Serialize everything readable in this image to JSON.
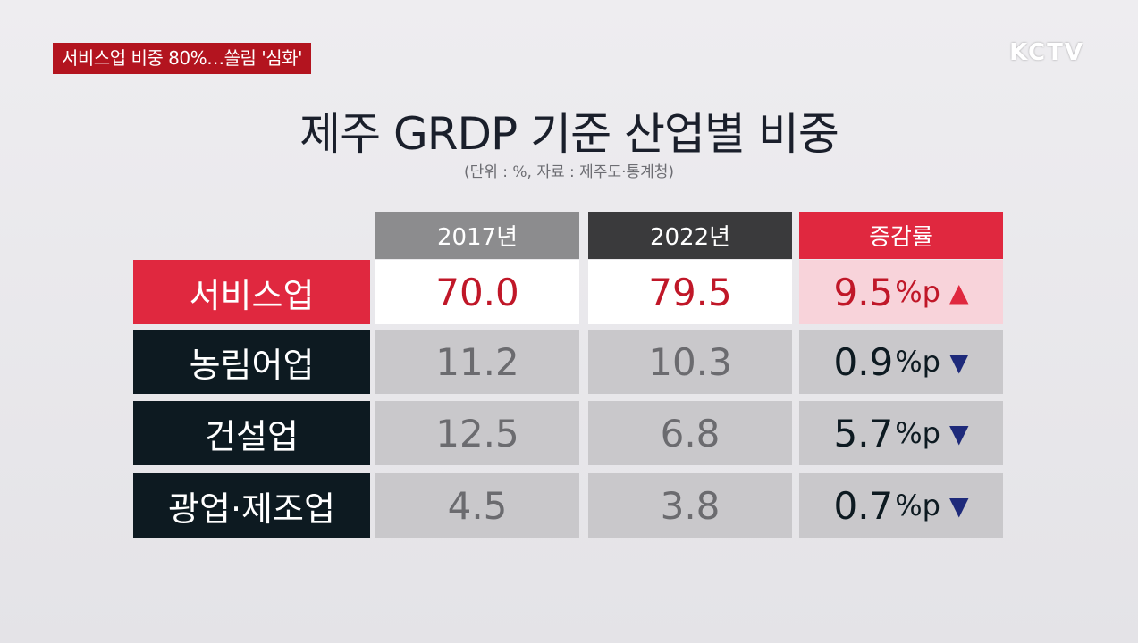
{
  "headline": "서비스업 비중 80%…쏠림 '심화'",
  "logo": "KCTV",
  "title": "제주 GRDP 기준 산업별 비중",
  "subtitle": "(단위 : %, 자료 : 제주도·통계청)",
  "columns": {
    "y2017": "2017년",
    "y2022": "2022년",
    "rate": "증감률"
  },
  "rows": [
    {
      "name": "서비스업",
      "v2017": "70.0",
      "v2022": "79.5",
      "rate": "9.5",
      "unit": "%p",
      "arrow": "▲"
    },
    {
      "name": "농림어업",
      "v2017": "11.2",
      "v2022": "10.3",
      "rate": "0.9",
      "unit": "%p",
      "arrow": "▼"
    },
    {
      "name": "건설업",
      "v2017": "12.5",
      "v2022": "6.8",
      "rate": "5.7",
      "unit": "%p",
      "arrow": "▼"
    },
    {
      "name": "광업·제조업",
      "v2017": "4.5",
      "v2022": "3.8",
      "rate": "0.7",
      "unit": "%p",
      "arrow": "▼"
    }
  ],
  "colors": {
    "accent": "#e0283f",
    "dark": "#0d1a21",
    "up": "#e0283f",
    "down": "#1e2a7a"
  }
}
